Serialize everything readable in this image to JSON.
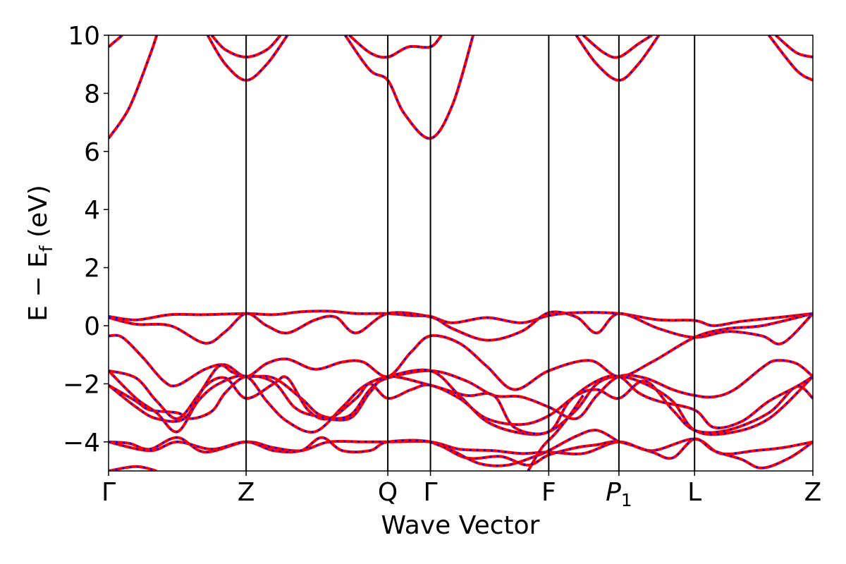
{
  "chart_data": {
    "type": "line",
    "title": "",
    "xlabel": "Wave Vector",
    "ylabel": "E − E",
    "ylabel_sub": "f",
    "ylabel_unit": " (eV)",
    "ylim": [
      -5,
      10
    ],
    "yticks": [
      {
        "value": -4,
        "label": "−4"
      },
      {
        "value": -2,
        "label": "−2"
      },
      {
        "value": 0,
        "label": "0"
      },
      {
        "value": 2,
        "label": "2"
      },
      {
        "value": 4,
        "label": "4"
      },
      {
        "value": 6,
        "label": "6"
      },
      {
        "value": 8,
        "label": "8"
      },
      {
        "value": 10,
        "label": "10"
      }
    ],
    "xlim": [
      0,
      5.12
    ],
    "kpoints": [
      {
        "x": 0.0,
        "label": "Γ"
      },
      {
        "x": 1.0,
        "label": "Z"
      },
      {
        "x": 2.03,
        "label": "Q"
      },
      {
        "x": 2.34,
        "label": "Γ"
      },
      {
        "x": 3.2,
        "label": "F"
      },
      {
        "x": 3.71,
        "label": "P",
        "sub": "1"
      },
      {
        "x": 4.26,
        "label": "L"
      },
      {
        "x": 5.12,
        "label": "Z"
      }
    ],
    "grid": false,
    "line_colors": {
      "solid": "#ff0000",
      "dashed": "#0000ff"
    },
    "bands": [
      [
        [
          0,
          6.45
        ],
        [
          0.15,
          7.5
        ],
        [
          0.3,
          9.3
        ],
        [
          0.35,
          10.0
        ]
      ],
      [
        [
          0,
          9.6
        ],
        [
          0.1,
          10.0
        ]
      ],
      [
        [
          0.75,
          10.0
        ],
        [
          0.85,
          9.5
        ],
        [
          1.0,
          9.25
        ],
        [
          1.15,
          9.5
        ],
        [
          1.25,
          10.0
        ]
      ],
      [
        [
          0.72,
          10.0
        ],
        [
          0.85,
          9.0
        ],
        [
          1.0,
          8.45
        ],
        [
          1.15,
          9.0
        ],
        [
          1.3,
          10.0
        ]
      ],
      [
        [
          1.75,
          10.0
        ],
        [
          1.9,
          9.4
        ],
        [
          2.03,
          9.25
        ],
        [
          2.18,
          9.6
        ],
        [
          2.34,
          9.6
        ],
        [
          2.42,
          10.0
        ]
      ],
      [
        [
          1.72,
          10.0
        ],
        [
          1.9,
          8.8
        ],
        [
          2.03,
          8.45
        ],
        [
          2.15,
          7.3
        ],
        [
          2.34,
          6.45
        ],
        [
          2.5,
          7.6
        ],
        [
          2.65,
          10.0
        ]
      ],
      [
        [
          3.45,
          10.0
        ],
        [
          3.6,
          9.4
        ],
        [
          3.71,
          9.25
        ],
        [
          3.85,
          9.7
        ],
        [
          3.95,
          10.0
        ]
      ],
      [
        [
          3.4,
          10.0
        ],
        [
          3.55,
          9.0
        ],
        [
          3.71,
          8.45
        ],
        [
          3.85,
          9.0
        ],
        [
          4.0,
          10.0
        ]
      ],
      [
        [
          4.85,
          10.0
        ],
        [
          5.0,
          9.4
        ],
        [
          5.12,
          9.25
        ]
      ],
      [
        [
          4.8,
          10.0
        ],
        [
          5.0,
          8.8
        ],
        [
          5.12,
          8.45
        ]
      ],
      [
        [
          0,
          0.32
        ],
        [
          0.2,
          0.2
        ],
        [
          0.45,
          0.38
        ],
        [
          0.7,
          0.38
        ],
        [
          1.0,
          0.42
        ],
        [
          1.2,
          0.38
        ],
        [
          1.4,
          0.48
        ],
        [
          1.6,
          0.5
        ],
        [
          1.8,
          0.42
        ],
        [
          2.03,
          0.42
        ],
        [
          2.2,
          0.35
        ],
        [
          2.34,
          0.32
        ],
        [
          2.5,
          0.1
        ],
        [
          2.75,
          0.28
        ],
        [
          3.0,
          0.1
        ],
        [
          3.2,
          0.35
        ],
        [
          3.4,
          0.45
        ],
        [
          3.71,
          0.42
        ],
        [
          4.0,
          0.2
        ],
        [
          4.26,
          0.18
        ],
        [
          4.4,
          0.0
        ],
        [
          4.6,
          0.15
        ],
        [
          4.9,
          0.3
        ],
        [
          5.12,
          0.42
        ]
      ],
      [
        [
          0,
          0.28
        ],
        [
          0.2,
          0.05
        ],
        [
          0.45,
          0.0
        ],
        [
          0.7,
          -0.6
        ],
        [
          0.85,
          -0.2
        ],
        [
          1.0,
          0.42
        ],
        [
          1.15,
          0.0
        ],
        [
          1.3,
          -0.25
        ],
        [
          1.5,
          0.2
        ],
        [
          1.65,
          0.3
        ],
        [
          1.8,
          -0.25
        ],
        [
          2.03,
          0.42
        ],
        [
          2.34,
          0.3
        ],
        [
          2.5,
          -0.1
        ],
        [
          2.75,
          -0.5
        ],
        [
          3.0,
          -0.2
        ],
        [
          3.2,
          0.45
        ],
        [
          3.4,
          0.3
        ],
        [
          3.55,
          -0.25
        ],
        [
          3.71,
          0.42
        ],
        [
          4.0,
          -0.1
        ],
        [
          4.26,
          -0.4
        ],
        [
          4.5,
          -0.2
        ],
        [
          4.75,
          -0.35
        ],
        [
          4.9,
          -0.6
        ],
        [
          5.12,
          0.42
        ]
      ],
      [
        [
          0,
          -0.35
        ],
        [
          0.1,
          -0.4
        ],
        [
          0.25,
          -1.1
        ],
        [
          0.4,
          -1.9
        ],
        [
          0.5,
          -2.05
        ],
        [
          0.7,
          -1.5
        ],
        [
          0.85,
          -1.35
        ],
        [
          1.0,
          -1.75
        ],
        [
          1.15,
          -1.3
        ],
        [
          1.3,
          -1.15
        ],
        [
          1.5,
          -1.5
        ],
        [
          1.7,
          -1.25
        ],
        [
          1.85,
          -1.25
        ],
        [
          2.03,
          -1.75
        ],
        [
          2.2,
          -0.9
        ],
        [
          2.34,
          -0.35
        ],
        [
          2.55,
          -0.6
        ],
        [
          2.75,
          -1.4
        ],
        [
          2.95,
          -2.2
        ],
        [
          3.2,
          -1.55
        ],
        [
          3.5,
          -1.2
        ],
        [
          3.71,
          -1.75
        ],
        [
          3.95,
          -1.25
        ],
        [
          4.26,
          -0.4
        ],
        [
          4.5,
          -0.1
        ],
        [
          4.75,
          0.0
        ],
        [
          5.12,
          0.42
        ]
      ],
      [
        [
          0,
          -1.55
        ],
        [
          0.2,
          -1.8
        ],
        [
          0.35,
          -2.6
        ],
        [
          0.5,
          -3.2
        ],
        [
          0.65,
          -2.4
        ],
        [
          0.8,
          -1.4
        ],
        [
          0.9,
          -1.6
        ],
        [
          1.0,
          -1.75
        ],
        [
          1.2,
          -1.8
        ],
        [
          1.4,
          -2.5
        ],
        [
          1.55,
          -3.1
        ],
        [
          1.75,
          -3.1
        ],
        [
          1.9,
          -2.2
        ],
        [
          2.03,
          -1.8
        ],
        [
          2.34,
          -1.55
        ],
        [
          2.6,
          -1.9
        ],
        [
          2.8,
          -2.4
        ],
        [
          3.0,
          -2.45
        ],
        [
          3.2,
          -2.8
        ],
        [
          3.4,
          -3.2
        ],
        [
          3.55,
          -2.4
        ],
        [
          3.71,
          -1.75
        ],
        [
          3.9,
          -1.8
        ],
        [
          4.1,
          -2.2
        ],
        [
          4.26,
          -2.4
        ],
        [
          4.4,
          -2.45
        ],
        [
          4.55,
          -2.2
        ],
        [
          4.75,
          -1.45
        ],
        [
          4.85,
          -1.2
        ],
        [
          5.0,
          -1.3
        ],
        [
          5.12,
          -1.75
        ]
      ],
      [
        [
          0,
          -1.55
        ],
        [
          0.2,
          -2.5
        ],
        [
          0.35,
          -3.0
        ],
        [
          0.5,
          -3.65
        ],
        [
          0.65,
          -2.6
        ],
        [
          0.8,
          -2.0
        ],
        [
          1.0,
          -1.75
        ],
        [
          1.15,
          -2.6
        ],
        [
          1.3,
          -3.3
        ],
        [
          1.5,
          -3.65
        ],
        [
          1.7,
          -2.8
        ],
        [
          1.85,
          -2.1
        ],
        [
          2.03,
          -1.75
        ],
        [
          2.34,
          -1.55
        ],
        [
          2.55,
          -2.4
        ],
        [
          2.75,
          -3.3
        ],
        [
          3.0,
          -3.7
        ],
        [
          3.2,
          -3.65
        ],
        [
          3.4,
          -2.9
        ],
        [
          3.55,
          -2.0
        ],
        [
          3.71,
          -1.75
        ],
        [
          3.9,
          -2.0
        ],
        [
          4.1,
          -2.6
        ],
        [
          4.26,
          -3.6
        ],
        [
          4.5,
          -3.7
        ],
        [
          4.8,
          -3.2
        ],
        [
          5.12,
          -1.75
        ]
      ],
      [
        [
          0,
          -2.05
        ],
        [
          0.2,
          -2.8
        ],
        [
          0.35,
          -3.2
        ],
        [
          0.55,
          -3.2
        ],
        [
          0.7,
          -2.1
        ],
        [
          0.85,
          -1.8
        ],
        [
          1.0,
          -2.5
        ],
        [
          1.2,
          -2.0
        ],
        [
          1.3,
          -1.8
        ],
        [
          1.45,
          -2.9
        ],
        [
          1.6,
          -3.2
        ],
        [
          1.8,
          -2.5
        ],
        [
          1.9,
          -2.0
        ],
        [
          2.03,
          -2.5
        ],
        [
          2.2,
          -2.2
        ],
        [
          2.34,
          -2.05
        ],
        [
          2.55,
          -2.5
        ],
        [
          2.75,
          -3.2
        ],
        [
          3.0,
          -3.4
        ],
        [
          3.2,
          -3.1
        ],
        [
          3.4,
          -2.4
        ],
        [
          3.55,
          -2.2
        ],
        [
          3.71,
          -2.5
        ],
        [
          3.9,
          -1.9
        ],
        [
          4.1,
          -2.9
        ],
        [
          4.26,
          -3.6
        ],
        [
          4.5,
          -3.6
        ],
        [
          4.8,
          -3.0
        ],
        [
          5.0,
          -2.1
        ],
        [
          5.12,
          -2.5
        ]
      ],
      [
        [
          0,
          -2.05
        ],
        [
          0.2,
          -2.6
        ],
        [
          0.3,
          -2.9
        ],
        [
          0.5,
          -3.0
        ],
        [
          0.6,
          -3.2
        ],
        [
          0.75,
          -2.95
        ],
        [
          0.85,
          -2.3
        ],
        [
          1.0,
          -1.75
        ],
        [
          1.2,
          -1.95
        ],
        [
          1.35,
          -2.8
        ],
        [
          1.5,
          -3.1
        ],
        [
          1.75,
          -3.2
        ],
        [
          1.9,
          -2.3
        ],
        [
          2.03,
          -1.75
        ],
        [
          2.34,
          -2.05
        ],
        [
          2.6,
          -2.4
        ],
        [
          2.8,
          -2.4
        ],
        [
          2.95,
          -3.5
        ],
        [
          3.2,
          -3.65
        ],
        [
          3.35,
          -2.6
        ],
        [
          3.55,
          -1.9
        ],
        [
          3.71,
          -1.75
        ],
        [
          3.85,
          -2.3
        ],
        [
          4.0,
          -2.6
        ],
        [
          4.26,
          -2.9
        ],
        [
          4.4,
          -3.5
        ],
        [
          4.6,
          -3.3
        ],
        [
          4.8,
          -2.6
        ],
        [
          5.0,
          -2.1
        ],
        [
          5.12,
          -1.75
        ]
      ],
      [
        [
          0,
          -4.0
        ],
        [
          0.15,
          -4.05
        ],
        [
          0.3,
          -4.25
        ],
        [
          0.5,
          -3.85
        ],
        [
          0.7,
          -4.35
        ],
        [
          1.0,
          -4.0
        ],
        [
          1.2,
          -4.2
        ],
        [
          1.4,
          -4.3
        ],
        [
          1.6,
          -4.0
        ],
        [
          1.85,
          -4.0
        ],
        [
          2.03,
          -4.0
        ],
        [
          2.34,
          -4.0
        ],
        [
          2.55,
          -4.25
        ],
        [
          2.8,
          -4.3
        ],
        [
          3.0,
          -4.4
        ],
        [
          3.2,
          -4.35
        ],
        [
          3.45,
          -4.4
        ],
        [
          3.71,
          -4.0
        ],
        [
          3.95,
          -4.3
        ],
        [
          4.26,
          -3.9
        ],
        [
          4.45,
          -4.4
        ],
        [
          4.7,
          -4.3
        ],
        [
          4.9,
          -4.2
        ],
        [
          5.12,
          -4.0
        ]
      ],
      [
        [
          0,
          -4.0
        ],
        [
          0.3,
          -4.3
        ],
        [
          0.5,
          -4.0
        ],
        [
          0.75,
          -4.25
        ],
        [
          1.0,
          -4.0
        ],
        [
          1.2,
          -4.3
        ],
        [
          1.4,
          -4.3
        ],
        [
          1.55,
          -3.85
        ],
        [
          1.7,
          -4.3
        ],
        [
          1.9,
          -4.3
        ],
        [
          2.03,
          -4.0
        ],
        [
          2.34,
          -4.0
        ],
        [
          2.6,
          -4.55
        ],
        [
          2.85,
          -4.5
        ],
        [
          3.05,
          -4.8
        ],
        [
          3.2,
          -4.45
        ],
        [
          3.4,
          -4.2
        ],
        [
          3.55,
          -4.1
        ],
        [
          3.71,
          -4.0
        ],
        [
          3.95,
          -4.35
        ],
        [
          4.1,
          -4.55
        ],
        [
          4.26,
          -3.9
        ],
        [
          4.4,
          -4.3
        ],
        [
          4.6,
          -4.6
        ],
        [
          4.75,
          -4.9
        ],
        [
          4.95,
          -4.55
        ],
        [
          5.12,
          -4.0
        ]
      ],
      [
        [
          2.34,
          -4.0
        ],
        [
          2.5,
          -4.3
        ],
        [
          2.7,
          -4.75
        ],
        [
          2.9,
          -4.8
        ],
        [
          3.1,
          -4.5
        ],
        [
          3.2,
          -4.3
        ],
        [
          3.4,
          -3.8
        ],
        [
          3.55,
          -3.6
        ],
        [
          3.71,
          -4.0
        ]
      ],
      [
        [
          0,
          -5.0
        ],
        [
          0.2,
          -4.85
        ],
        [
          0.35,
          -5.0
        ]
      ],
      [
        [
          3.05,
          -5.0
        ],
        [
          3.15,
          -4.2
        ],
        [
          3.25,
          -3.7
        ],
        [
          3.35,
          -3.1
        ],
        [
          3.45,
          -2.4
        ]
      ]
    ]
  }
}
